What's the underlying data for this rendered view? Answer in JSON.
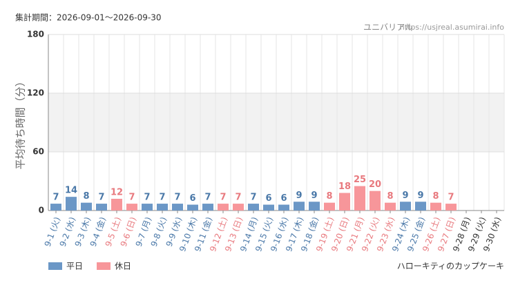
{
  "chart_data": {
    "type": "bar",
    "subtitle": "集計期間：2026-09-01～2026-09-30",
    "source_name": "ユニバリアル",
    "source_url": "https://usjreal.asumirai.info",
    "y_label": "平均待ち時間（分）",
    "footnote": "ハローキティのカップケーキ",
    "categories": [
      "9-1 (火)",
      "9-2 (水)",
      "9-3 (木)",
      "9-4 (金)",
      "9-5 (土)",
      "9-6 (日)",
      "9-7 (月)",
      "9-8 (火)",
      "9-9 (水)",
      "9-10 (木)",
      "9-11 (金)",
      "9-12 (土)",
      "9-13 (日)",
      "9-14 (月)",
      "9-15 (火)",
      "9-16 (水)",
      "9-17 (木)",
      "9-18 (金)",
      "9-19 (土)",
      "9-20 (日)",
      "9-21 (月)",
      "9-22 (火)",
      "9-23 (水)",
      "9-24 (木)",
      "9-25 (金)",
      "9-26 (土)",
      "9-27 (日)",
      "9-28 (月)",
      "9-29 (火)",
      "9-30 (水)"
    ],
    "series": [
      {
        "name": "平日",
        "color": "#6b97c6",
        "label_color": "#4a78a8",
        "values": [
          7,
          14,
          8,
          7,
          null,
          null,
          7,
          7,
          7,
          6,
          7,
          null,
          null,
          7,
          6,
          6,
          9,
          9,
          null,
          null,
          null,
          null,
          null,
          9,
          9,
          null,
          null,
          null,
          null,
          null
        ]
      },
      {
        "name": "休日",
        "color": "#f7969a",
        "label_color": "#e8797e",
        "values": [
          null,
          null,
          null,
          null,
          12,
          7,
          null,
          null,
          null,
          null,
          null,
          7,
          7,
          null,
          null,
          null,
          null,
          null,
          8,
          18,
          25,
          20,
          8,
          null,
          null,
          8,
          7,
          null,
          null,
          null
        ]
      }
    ],
    "ylim": [
      0,
      180
    ],
    "yticks": [
      0,
      60,
      120,
      180
    ],
    "grid": true
  }
}
